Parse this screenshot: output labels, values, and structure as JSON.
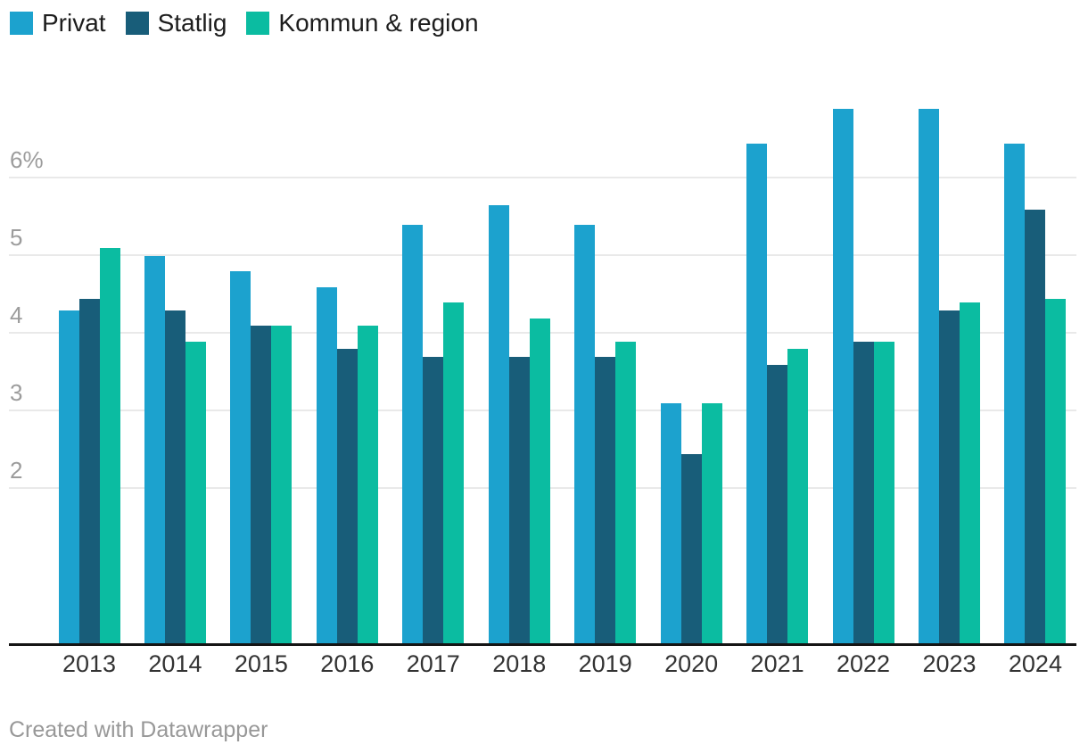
{
  "chart_data": {
    "type": "bar",
    "title": "",
    "xlabel": "",
    "ylabel": "",
    "categories": [
      "2013",
      "2014",
      "2015",
      "2016",
      "2017",
      "2018",
      "2019",
      "2020",
      "2021",
      "2022",
      "2023",
      "2024"
    ],
    "series": [
      {
        "name": "Privat",
        "color": "#1ca2ce",
        "values": [
          4.3,
          5.0,
          4.8,
          4.6,
          5.4,
          5.65,
          5.4,
          3.1,
          6.45,
          6.9,
          6.9,
          6.45
        ]
      },
      {
        "name": "Statlig",
        "color": "#185d79",
        "values": [
          4.45,
          4.3,
          4.1,
          3.8,
          3.7,
          3.7,
          3.7,
          2.45,
          3.6,
          3.9,
          4.3,
          5.6
        ]
      },
      {
        "name": "Kommun & region",
        "color": "#0bbca1",
        "values": [
          5.1,
          3.9,
          4.1,
          4.1,
          4.4,
          4.2,
          3.9,
          3.1,
          3.8,
          3.9,
          4.4,
          4.45
        ]
      }
    ],
    "y_axis": {
      "ticks": [
        {
          "value": 2,
          "label": "2"
        },
        {
          "value": 3,
          "label": "3"
        },
        {
          "value": 4,
          "label": "4"
        },
        {
          "value": 5,
          "label": "5"
        },
        {
          "value": 6,
          "label": "6%"
        }
      ],
      "ylim": [
        0,
        7.2
      ],
      "gridline_color": "#e9e9e9"
    },
    "legend_position": "top-left",
    "grid": true
  },
  "footer": {
    "credit": "Created with Datawrapper"
  }
}
